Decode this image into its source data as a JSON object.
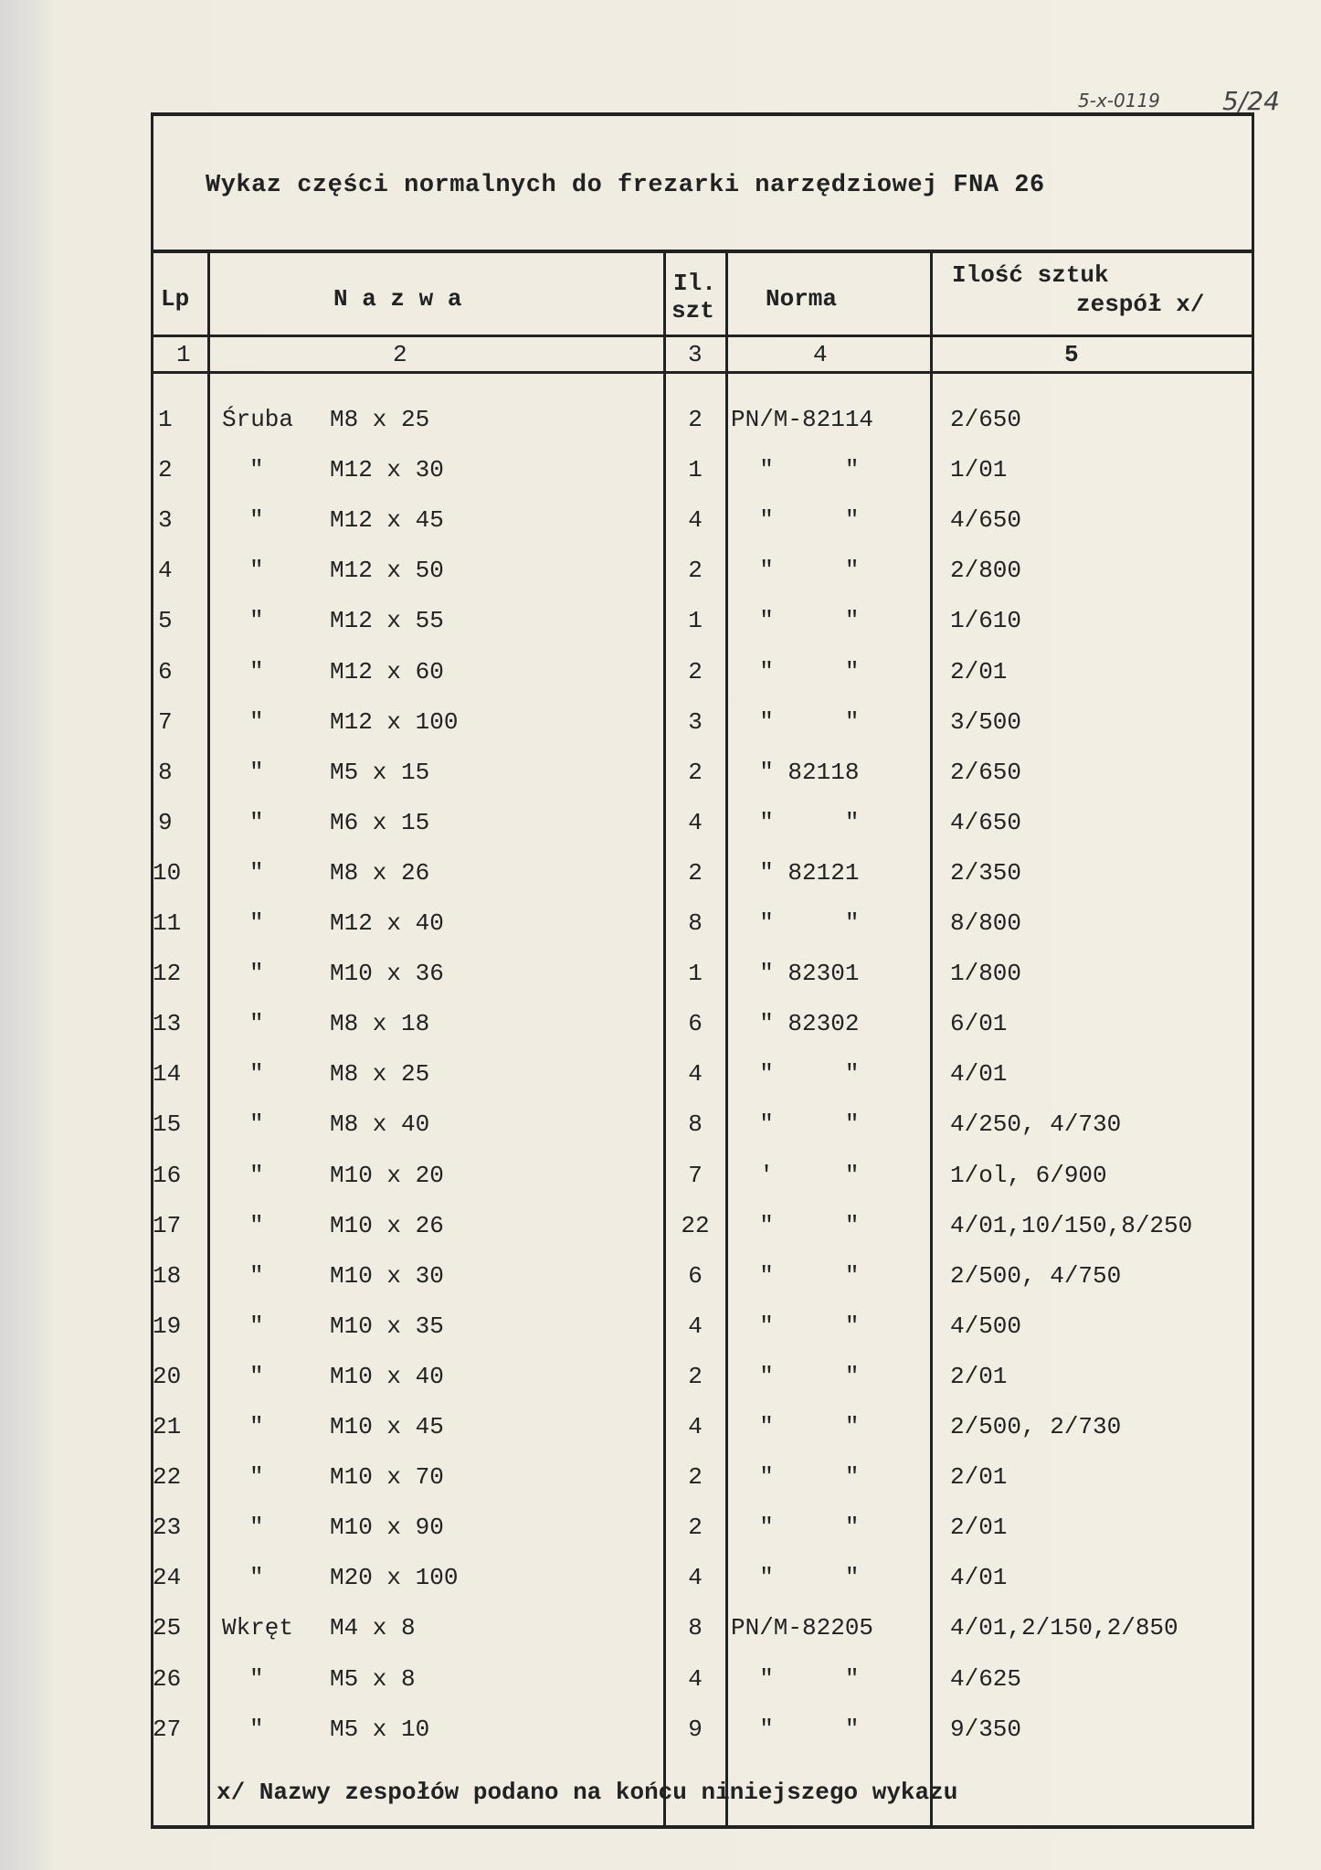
{
  "annotations": {
    "reference": "5-x-0119",
    "page": "5/24"
  },
  "title": "Wykaz części normalnych do frezarki narzędziowej FNA 26",
  "headers": {
    "lp": "Lp",
    "nazwa": "N a z w a",
    "il_1": "Il.",
    "il_2": "szt",
    "norma": "Norma",
    "ilosc_1": "Ilość sztuk",
    "ilosc_2": "zespół x/"
  },
  "column_numbers": [
    "1",
    "2",
    "3",
    "4",
    "5"
  ],
  "rows": [
    {
      "lp": "1",
      "kind": "Śruba",
      "size": "M8 x 25",
      "il": "2",
      "norma": "PN/M-82114",
      "qty": "2/650"
    },
    {
      "lp": "2",
      "kind": "\"",
      "size": "M12 x 30",
      "il": "1",
      "norma": "  \"     \"",
      "qty": "1/01"
    },
    {
      "lp": "3",
      "kind": "\"",
      "size": "M12 x 45",
      "il": "4",
      "norma": "  \"     \"",
      "qty": "4/650"
    },
    {
      "lp": "4",
      "kind": "\"",
      "size": "M12 x 50",
      "il": "2",
      "norma": "  \"     \"",
      "qty": "2/800"
    },
    {
      "lp": "5",
      "kind": "\"",
      "size": "M12 x 55",
      "il": "1",
      "norma": "  \"     \"",
      "qty": "1/610"
    },
    {
      "lp": "6",
      "kind": "\"",
      "size": "M12 x 60",
      "il": "2",
      "norma": "  \"     \"",
      "qty": "2/01"
    },
    {
      "lp": "7",
      "kind": "\"",
      "size": "M12 x 100",
      "il": "3",
      "norma": "  \"     \"",
      "qty": "3/500"
    },
    {
      "lp": "8",
      "kind": "\"",
      "size": "M5 x 15",
      "il": "2",
      "norma": "  \" 82118",
      "qty": "2/650"
    },
    {
      "lp": "9",
      "kind": "\"",
      "size": "M6 x 15",
      "il": "4",
      "norma": "  \"     \"",
      "qty": "4/650"
    },
    {
      "lp": "10",
      "kind": "\"",
      "size": "M8 x 26",
      "il": "2",
      "norma": "  \" 82121",
      "qty": "2/350"
    },
    {
      "lp": "11",
      "kind": "\"",
      "size": "M12 x 40",
      "il": "8",
      "norma": "  \"     \"",
      "qty": "8/800"
    },
    {
      "lp": "12",
      "kind": "\"",
      "size": "M10 x 36",
      "il": "1",
      "norma": "  \" 82301",
      "qty": "1/800"
    },
    {
      "lp": "13",
      "kind": "\"",
      "size": "M8 x 18",
      "il": "6",
      "norma": "  \" 82302",
      "qty": "6/01"
    },
    {
      "lp": "14",
      "kind": "\"",
      "size": "M8 x 25",
      "il": "4",
      "norma": "  \"     \"",
      "qty": "4/01"
    },
    {
      "lp": "15",
      "kind": "\"",
      "size": "M8 x 40",
      "il": "8",
      "norma": "  \"     \"",
      "qty": "4/250, 4/730"
    },
    {
      "lp": "16",
      "kind": "\"",
      "size": "M10 x 20",
      "il": "7",
      "norma": "  '     \"",
      "qty": "1/ol, 6/900"
    },
    {
      "lp": "17",
      "kind": "\"",
      "size": "M10 x 26",
      "il": "22",
      "norma": "  \"     \"",
      "qty": "4/01,10/150,8/250"
    },
    {
      "lp": "18",
      "kind": "\"",
      "size": "M10 x 30",
      "il": "6",
      "norma": "  \"     \"",
      "qty": "2/500, 4/750"
    },
    {
      "lp": "19",
      "kind": "\"",
      "size": "M10 x 35",
      "il": "4",
      "norma": "  \"     \"",
      "qty": "4/500"
    },
    {
      "lp": "20",
      "kind": "\"",
      "size": "M10 x 40",
      "il": "2",
      "norma": "  \"     \"",
      "qty": "2/01"
    },
    {
      "lp": "21",
      "kind": "\"",
      "size": "M10 x 45",
      "il": "4",
      "norma": "  \"     \"",
      "qty": "2/500, 2/730"
    },
    {
      "lp": "22",
      "kind": "\"",
      "size": "M10 x 70",
      "il": "2",
      "norma": "  \"     \"",
      "qty": "2/01"
    },
    {
      "lp": "23",
      "kind": "\"",
      "size": "M10 x 90",
      "il": "2",
      "norma": "  \"     \"",
      "qty": "2/01"
    },
    {
      "lp": "24",
      "kind": "\"",
      "size": "M20 x 100",
      "il": "4",
      "norma": "  \"     \"",
      "qty": "4/01"
    },
    {
      "lp": "25",
      "kind": "Wkręt",
      "size": "M4 x 8",
      "il": "8",
      "norma": "PN/M-82205",
      "qty": "4/01,2/150,2/850"
    },
    {
      "lp": "26",
      "kind": "\"",
      "size": "M5 x 8",
      "il": "4",
      "norma": "  \"     \"",
      "qty": "4/625"
    },
    {
      "lp": "27",
      "kind": "\"",
      "size": "M5 x 10",
      "il": "9",
      "norma": "  \"     \"",
      "qty": "9/350"
    }
  ],
  "footnote": "x/ Nazwy zespołów podano na końcu niniejszego wykazu"
}
